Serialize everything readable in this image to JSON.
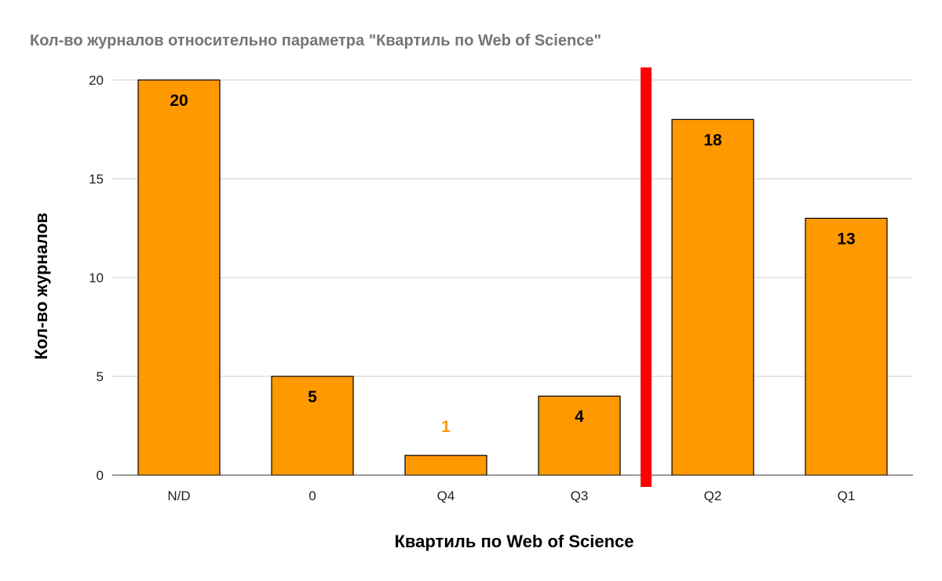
{
  "chart_data": {
    "type": "bar",
    "title": "Кол-во журналов относительно параметра \"Квартиль по Web of Science\"",
    "xlabel": "Квартиль по Web of Science",
    "ylabel": "Кол-во журналов",
    "categories": [
      "N/D",
      "0",
      "Q4",
      "Q3",
      "Q2",
      "Q1"
    ],
    "values": [
      20,
      5,
      1,
      4,
      18,
      13
    ],
    "data_labels": [
      "20",
      "5",
      "1",
      "4",
      "18",
      "13"
    ],
    "yticks": [
      "0",
      "5",
      "10",
      "15",
      "20"
    ],
    "ylim": [
      0,
      20
    ],
    "grid": true,
    "legend": "none",
    "separator": {
      "between": [
        "Q3",
        "Q2"
      ],
      "color": "#ff0000"
    },
    "colors": {
      "bar": "#ff9900",
      "bar_outline": "#000000",
      "label_inside": "#000000",
      "label_outside": "#ff9900",
      "grid": "#cccccc",
      "title": "#757575"
    }
  }
}
